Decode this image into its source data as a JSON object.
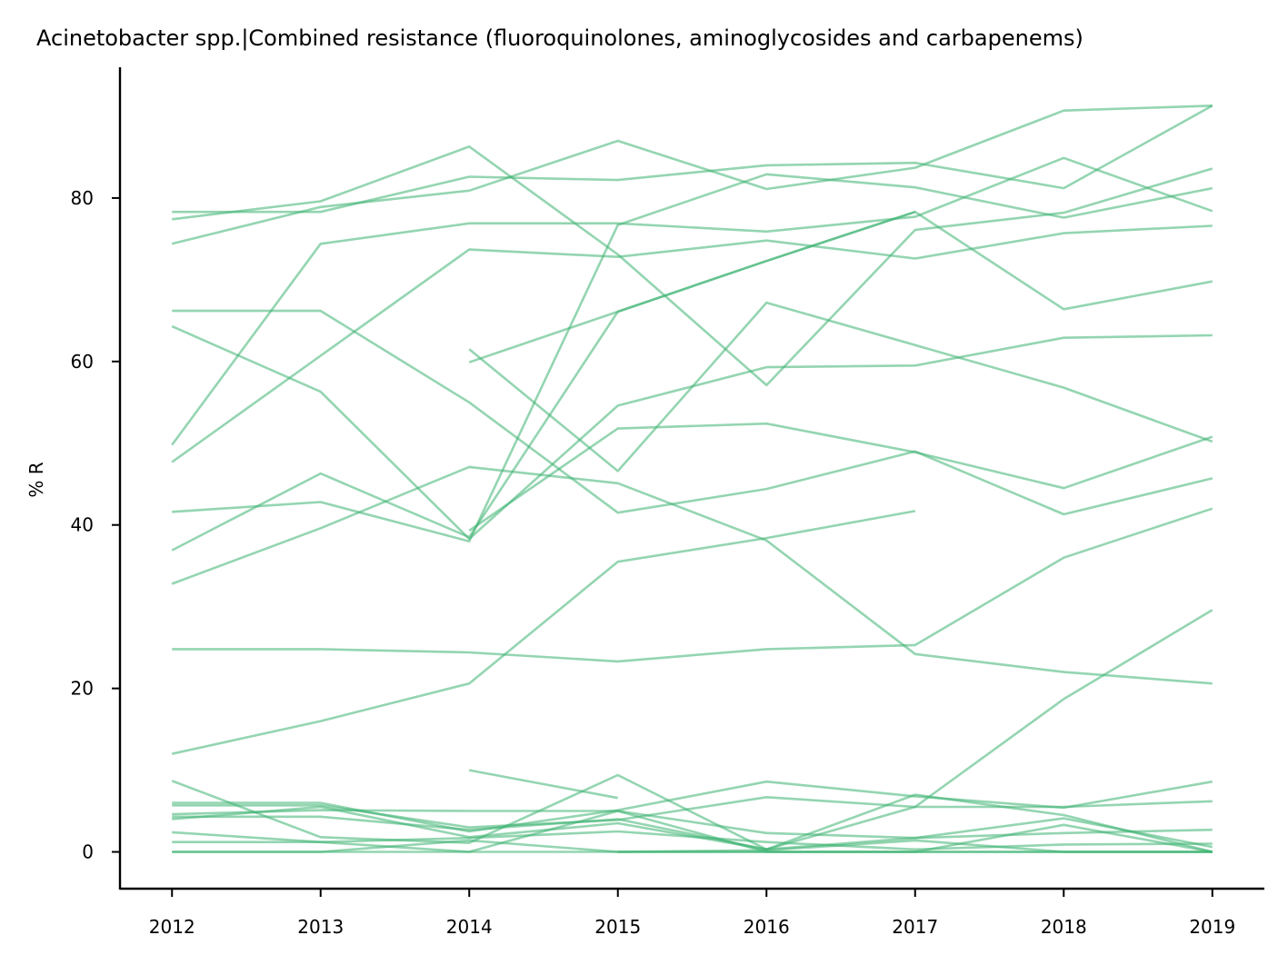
{
  "chart_data": {
    "type": "line",
    "title": "Acinetobacter spp.|Combined resistance (fluoroquinolones, aminoglycosides and carbapenems)",
    "xlabel": "",
    "ylabel": "% R",
    "x": [
      2012,
      2013,
      2014,
      2015,
      2016,
      2017,
      2018,
      2019
    ],
    "xticks": [
      "2012",
      "2013",
      "2014",
      "2015",
      "2016",
      "2017",
      "2018",
      "2019"
    ],
    "yticks": [
      "0",
      "20",
      "40",
      "60",
      "80"
    ],
    "ylim": [
      -4.5,
      96
    ],
    "xlim": [
      2011.65,
      2019.35
    ],
    "grid": false,
    "legend": "none",
    "line_color": "#3cb371",
    "series": [
      {
        "values": [
          78.3,
          78.3,
          82.6,
          82.2,
          84.0,
          84.3,
          81.2,
          91.3
        ]
      },
      {
        "values": [
          77.4,
          79.6,
          86.3,
          73.1,
          57.1,
          76.1,
          78.2,
          83.6
        ]
      },
      {
        "values": [
          74.4,
          78.9,
          80.9,
          87.0,
          81.1,
          83.7,
          90.7,
          91.3
        ]
      },
      {
        "values": [
          49.8,
          74.4,
          76.9,
          76.9,
          75.9,
          77.7,
          84.9,
          78.4
        ]
      },
      {
        "values": [
          47.7,
          60.7,
          73.7,
          72.8,
          74.8,
          72.6,
          75.7,
          76.6
        ]
      },
      {
        "values": [
          66.2,
          66.2,
          55.0,
          41.5,
          44.4,
          49.0,
          41.3,
          45.7
        ]
      },
      {
        "values": [
          64.3,
          56.3,
          38.3,
          54.6,
          59.3,
          59.5,
          62.9,
          63.2
        ]
      },
      {
        "values": [
          41.6,
          42.8,
          38.0,
          76.7,
          82.9,
          81.3,
          77.6,
          81.2
        ]
      },
      {
        "values": [
          36.9,
          46.3,
          38.5,
          66.1,
          72.3,
          78.3,
          66.4,
          69.8
        ]
      },
      {
        "values": [
          32.8,
          39.6,
          47.1,
          45.1,
          38.1,
          24.2,
          22.0,
          20.6
        ]
      },
      {
        "values": [
          null,
          null,
          61.5,
          46.6,
          67.2,
          62.0,
          56.8,
          50.2
        ]
      },
      {
        "values": [
          null,
          null,
          59.9,
          66.1,
          72.3,
          78.3,
          null,
          null
        ]
      },
      {
        "values": [
          null,
          null,
          39.3,
          51.8,
          52.4,
          48.9,
          44.5,
          50.8
        ]
      },
      {
        "values": [
          24.8,
          24.8,
          24.4,
          23.3,
          24.8,
          25.3,
          36.0,
          42.0
        ]
      },
      {
        "values": [
          12.0,
          16.0,
          20.6,
          35.5,
          38.4,
          41.7,
          null,
          null
        ]
      },
      {
        "values": [
          null,
          null,
          10.0,
          6.6,
          null,
          null,
          null,
          null
        ]
      },
      {
        "values": [
          8.7,
          1.8,
          1.1,
          9.4,
          0.3,
          5.5,
          18.7,
          29.6
        ]
      },
      {
        "values": [
          6.0,
          6.0,
          2.5,
          5.1,
          8.6,
          6.8,
          5.4,
          8.6
        ]
      },
      {
        "values": [
          5.7,
          5.7,
          3.0,
          3.9,
          6.7,
          5.5,
          5.5,
          6.2
        ]
      },
      {
        "values": [
          4.6,
          5.1,
          5.0,
          5.0,
          2.3,
          1.7,
          2.3,
          2.7
        ]
      },
      {
        "values": [
          4.3,
          4.3,
          2.7,
          4.0,
          0.3,
          1.7,
          4.1,
          0.6
        ]
      },
      {
        "values": [
          4.0,
          5.5,
          1.8,
          3.5,
          0.3,
          7.0,
          4.5,
          0.0
        ]
      },
      {
        "values": [
          2.4,
          1.2,
          0.0,
          5.0,
          0.0,
          0.0,
          3.3,
          0.0
        ]
      },
      {
        "values": [
          1.2,
          1.2,
          1.7,
          2.5,
          1.2,
          0.3,
          0.9,
          1.0
        ]
      },
      {
        "values": [
          0.0,
          0.0,
          1.4,
          0.0,
          0.0,
          0.0,
          0.0,
          0.0
        ]
      },
      {
        "values": [
          0.0,
          0.0,
          0.0,
          0.0,
          0.2,
          1.4,
          0.0,
          0.0
        ]
      },
      {
        "values": [
          null,
          null,
          null,
          0.0,
          0.0,
          0.0,
          0.0,
          0.0
        ]
      }
    ]
  }
}
